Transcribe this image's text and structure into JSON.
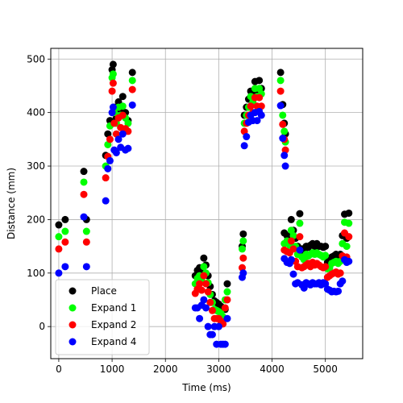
{
  "chart_data": {
    "type": "scatter",
    "title": "",
    "xlabel": "Time (ms)",
    "ylabel": "Distance (mm)",
    "xlim": [
      -150,
      5700
    ],
    "ylim": [
      -60,
      520
    ],
    "xticks": [
      0,
      1000,
      2000,
      3000,
      4000,
      5000
    ],
    "yticks": [
      0,
      100,
      200,
      300,
      400,
      500
    ],
    "grid": true,
    "legend": "lower-left",
    "series": [
      {
        "name": "Place",
        "color": "#000000",
        "points": [
          [
            0,
            190
          ],
          [
            120,
            200
          ],
          [
            470,
            290
          ],
          [
            520,
            200
          ],
          [
            880,
            320
          ],
          [
            920,
            360
          ],
          [
            960,
            385
          ],
          [
            1000,
            480
          ],
          [
            1020,
            490
          ],
          [
            1040,
            410
          ],
          [
            1080,
            390
          ],
          [
            1120,
            420
          ],
          [
            1160,
            405
          ],
          [
            1200,
            430
          ],
          [
            1250,
            400
          ],
          [
            1300,
            385
          ],
          [
            1380,
            475
          ],
          [
            2560,
            95
          ],
          [
            2600,
            105
          ],
          [
            2640,
            110
          ],
          [
            2680,
            100
          ],
          [
            2720,
            128
          ],
          [
            2760,
            115
          ],
          [
            2800,
            95
          ],
          [
            2840,
            75
          ],
          [
            2880,
            60
          ],
          [
            2920,
            48
          ],
          [
            2960,
            45
          ],
          [
            3000,
            42
          ],
          [
            3040,
            38
          ],
          [
            3080,
            32
          ],
          [
            3120,
            32
          ],
          [
            3160,
            80
          ],
          [
            3440,
            150
          ],
          [
            3460,
            173
          ],
          [
            3480,
            395
          ],
          [
            3520,
            410
          ],
          [
            3560,
            425
          ],
          [
            3600,
            440
          ],
          [
            3640,
            435
          ],
          [
            3680,
            458
          ],
          [
            3720,
            440
          ],
          [
            3760,
            460
          ],
          [
            3800,
            445
          ],
          [
            4160,
            475
          ],
          [
            4200,
            415
          ],
          [
            4230,
            380
          ],
          [
            4250,
            360
          ],
          [
            4230,
            175
          ],
          [
            4280,
            170
          ],
          [
            4330,
            168
          ],
          [
            4360,
            200
          ],
          [
            4400,
            180
          ],
          [
            4440,
            165
          ],
          [
            4480,
            150
          ],
          [
            4520,
            211
          ],
          [
            4560,
            145
          ],
          [
            4600,
            140
          ],
          [
            4640,
            150
          ],
          [
            4680,
            148
          ],
          [
            4720,
            152
          ],
          [
            4760,
            155
          ],
          [
            4800,
            150
          ],
          [
            4840,
            155
          ],
          [
            4880,
            150
          ],
          [
            4920,
            150
          ],
          [
            4960,
            148
          ],
          [
            5000,
            150
          ],
          [
            5040,
            120
          ],
          [
            5080,
            125
          ],
          [
            5120,
            130
          ],
          [
            5160,
            132
          ],
          [
            5200,
            135
          ],
          [
            5240,
            130
          ],
          [
            5280,
            135
          ],
          [
            5320,
            170
          ],
          [
            5360,
            210
          ],
          [
            5400,
            165
          ],
          [
            5440,
            212
          ]
        ]
      },
      {
        "name": "Expand 1",
        "color": "#00ff00",
        "points": [
          [
            0,
            168
          ],
          [
            120,
            178
          ],
          [
            470,
            270
          ],
          [
            520,
            178
          ],
          [
            880,
            300
          ],
          [
            920,
            340
          ],
          [
            960,
            375
          ],
          [
            1000,
            465
          ],
          [
            1020,
            472
          ],
          [
            1040,
            400
          ],
          [
            1080,
            380
          ],
          [
            1120,
            410
          ],
          [
            1160,
            395
          ],
          [
            1200,
            412
          ],
          [
            1250,
            390
          ],
          [
            1300,
            380
          ],
          [
            1380,
            460
          ],
          [
            2560,
            80
          ],
          [
            2600,
            90
          ],
          [
            2640,
            95
          ],
          [
            2680,
            85
          ],
          [
            2720,
            112
          ],
          [
            2760,
            100
          ],
          [
            2800,
            82
          ],
          [
            2840,
            60
          ],
          [
            2880,
            45
          ],
          [
            2920,
            32
          ],
          [
            2960,
            30
          ],
          [
            3000,
            28
          ],
          [
            3040,
            25
          ],
          [
            3080,
            18
          ],
          [
            3120,
            50
          ],
          [
            3160,
            65
          ],
          [
            3440,
            145
          ],
          [
            3460,
            160
          ],
          [
            3480,
            380
          ],
          [
            3520,
            395
          ],
          [
            3560,
            410
          ],
          [
            3600,
            430
          ],
          [
            3640,
            420
          ],
          [
            3680,
            445
          ],
          [
            3720,
            430
          ],
          [
            3760,
            445
          ],
          [
            3800,
            435
          ],
          [
            4160,
            460
          ],
          [
            4200,
            395
          ],
          [
            4230,
            365
          ],
          [
            4250,
            345
          ],
          [
            4230,
            155
          ],
          [
            4280,
            160
          ],
          [
            4330,
            152
          ],
          [
            4360,
            180
          ],
          [
            4400,
            170
          ],
          [
            4440,
            150
          ],
          [
            4480,
            135
          ],
          [
            4520,
            193
          ],
          [
            4560,
            130
          ],
          [
            4600,
            125
          ],
          [
            4640,
            135
          ],
          [
            4680,
            132
          ],
          [
            4720,
            135
          ],
          [
            4760,
            138
          ],
          [
            4800,
            135
          ],
          [
            4840,
            138
          ],
          [
            4880,
            135
          ],
          [
            4920,
            133
          ],
          [
            4960,
            130
          ],
          [
            5000,
            133
          ],
          [
            5040,
            108
          ],
          [
            5080,
            110
          ],
          [
            5120,
            118
          ],
          [
            5160,
            120
          ],
          [
            5200,
            122
          ],
          [
            5240,
            118
          ],
          [
            5280,
            122
          ],
          [
            5320,
            155
          ],
          [
            5360,
            195
          ],
          [
            5400,
            150
          ],
          [
            5440,
            193
          ]
        ]
      },
      {
        "name": "Expand 2",
        "color": "#ff0000",
        "points": [
          [
            0,
            145
          ],
          [
            120,
            158
          ],
          [
            470,
            247
          ],
          [
            520,
            158
          ],
          [
            880,
            278
          ],
          [
            920,
            318
          ],
          [
            960,
            350
          ],
          [
            1000,
            440
          ],
          [
            1020,
            455
          ],
          [
            1040,
            380
          ],
          [
            1080,
            360
          ],
          [
            1120,
            390
          ],
          [
            1160,
            372
          ],
          [
            1200,
            395
          ],
          [
            1250,
            370
          ],
          [
            1300,
            365
          ],
          [
            1380,
            443
          ],
          [
            2560,
            62
          ],
          [
            2600,
            70
          ],
          [
            2640,
            80
          ],
          [
            2680,
            68
          ],
          [
            2720,
            95
          ],
          [
            2760,
            80
          ],
          [
            2800,
            65
          ],
          [
            2840,
            45
          ],
          [
            2880,
            30
          ],
          [
            2920,
            15
          ],
          [
            2960,
            15
          ],
          [
            3000,
            15
          ],
          [
            3040,
            10
          ],
          [
            3080,
            5
          ],
          [
            3120,
            35
          ],
          [
            3160,
            50
          ],
          [
            3440,
            110
          ],
          [
            3460,
            128
          ],
          [
            3480,
            365
          ],
          [
            3520,
            380
          ],
          [
            3560,
            395
          ],
          [
            3600,
            412
          ],
          [
            3640,
            400
          ],
          [
            3680,
            428
          ],
          [
            3720,
            412
          ],
          [
            3760,
            428
          ],
          [
            3800,
            412
          ],
          [
            4160,
            440
          ],
          [
            4200,
            378
          ],
          [
            4230,
            350
          ],
          [
            4250,
            330
          ],
          [
            4230,
            143
          ],
          [
            4280,
            140
          ],
          [
            4330,
            138
          ],
          [
            4360,
            160
          ],
          [
            4400,
            145
          ],
          [
            4440,
            122
          ],
          [
            4480,
            112
          ],
          [
            4520,
            168
          ],
          [
            4560,
            110
          ],
          [
            4600,
            112
          ],
          [
            4640,
            115
          ],
          [
            4680,
            118
          ],
          [
            4720,
            112
          ],
          [
            4760,
            120
          ],
          [
            4800,
            115
          ],
          [
            4840,
            118
          ],
          [
            4880,
            115
          ],
          [
            4920,
            112
          ],
          [
            4960,
            110
          ],
          [
            5000,
            112
          ],
          [
            5040,
            92
          ],
          [
            5080,
            95
          ],
          [
            5120,
            98
          ],
          [
            5160,
            100
          ],
          [
            5200,
            102
          ],
          [
            5240,
            98
          ],
          [
            5280,
            100
          ],
          [
            5320,
            132
          ],
          [
            5360,
            175
          ],
          [
            5400,
            130
          ],
          [
            5440,
            168
          ]
        ]
      },
      {
        "name": "Expand 4",
        "color": "#0000ff",
        "points": [
          [
            0,
            100
          ],
          [
            120,
            112
          ],
          [
            470,
            205
          ],
          [
            520,
            112
          ],
          [
            880,
            235
          ],
          [
            920,
            295
          ],
          [
            960,
            310
          ],
          [
            1000,
            400
          ],
          [
            1020,
            410
          ],
          [
            1040,
            330
          ],
          [
            1080,
            325
          ],
          [
            1120,
            350
          ],
          [
            1160,
            335
          ],
          [
            1200,
            360
          ],
          [
            1250,
            330
          ],
          [
            1300,
            333
          ],
          [
            1380,
            414
          ],
          [
            2560,
            35
          ],
          [
            2600,
            35
          ],
          [
            2640,
            15
          ],
          [
            2680,
            40
          ],
          [
            2720,
            50
          ],
          [
            2760,
            35
          ],
          [
            2800,
            0
          ],
          [
            2840,
            -15
          ],
          [
            2880,
            -15
          ],
          [
            2920,
            0
          ],
          [
            2960,
            -33
          ],
          [
            3000,
            0
          ],
          [
            3040,
            -33
          ],
          [
            3080,
            -33
          ],
          [
            3120,
            -33
          ],
          [
            3160,
            15
          ],
          [
            3440,
            92
          ],
          [
            3460,
            100
          ],
          [
            3480,
            338
          ],
          [
            3520,
            355
          ],
          [
            3560,
            382
          ],
          [
            3600,
            395
          ],
          [
            3640,
            385
          ],
          [
            3680,
            400
          ],
          [
            3720,
            385
          ],
          [
            3760,
            402
          ],
          [
            3800,
            395
          ],
          [
            4160,
            413
          ],
          [
            4200,
            352
          ],
          [
            4230,
            320
          ],
          [
            4250,
            300
          ],
          [
            4230,
            127
          ],
          [
            4280,
            120
          ],
          [
            4330,
            118
          ],
          [
            4360,
            125
          ],
          [
            4400,
            98
          ],
          [
            4440,
            80
          ],
          [
            4480,
            82
          ],
          [
            4520,
            143
          ],
          [
            4560,
            78
          ],
          [
            4600,
            72
          ],
          [
            4640,
            82
          ],
          [
            4680,
            80
          ],
          [
            4720,
            78
          ],
          [
            4760,
            82
          ],
          [
            4800,
            80
          ],
          [
            4840,
            80
          ],
          [
            4880,
            82
          ],
          [
            4920,
            78
          ],
          [
            4960,
            82
          ],
          [
            5000,
            80
          ],
          [
            5040,
            70
          ],
          [
            5080,
            68
          ],
          [
            5120,
            65
          ],
          [
            5160,
            66
          ],
          [
            5200,
            65
          ],
          [
            5240,
            66
          ],
          [
            5280,
            80
          ],
          [
            5320,
            85
          ],
          [
            5360,
            125
          ],
          [
            5400,
            120
          ],
          [
            5440,
            122
          ]
        ]
      }
    ]
  }
}
